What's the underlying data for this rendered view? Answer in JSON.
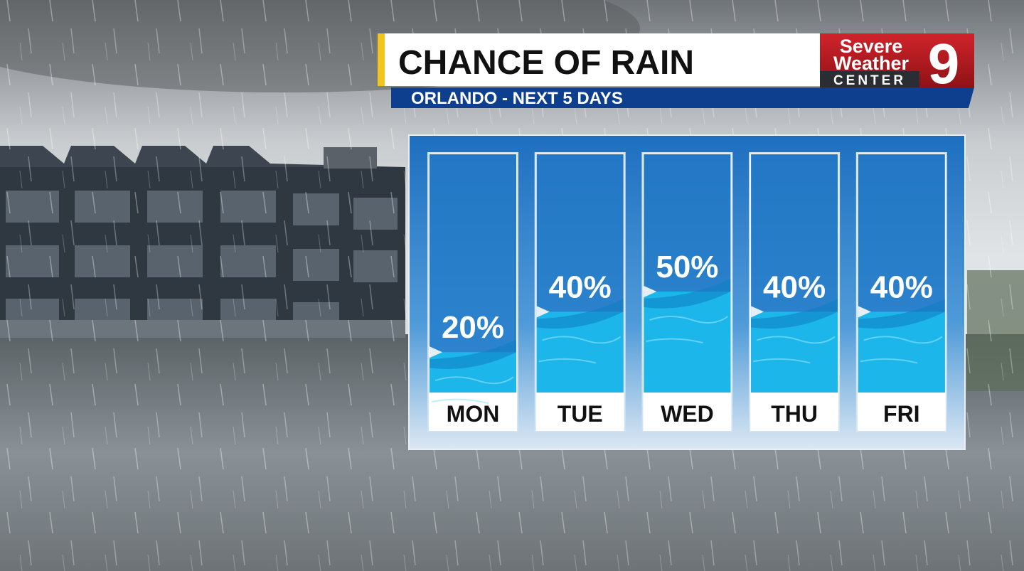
{
  "chart_data": {
    "type": "bar",
    "title": "CHANCE OF RAIN",
    "subtitle": "ORLANDO - NEXT 5 DAYS",
    "categories": [
      "MON",
      "TUE",
      "WED",
      "THU",
      "FRI"
    ],
    "values": [
      20,
      40,
      50,
      40,
      40
    ],
    "value_labels": [
      "20%",
      "40%",
      "50%",
      "40%",
      "40%"
    ],
    "color": "#1cb6ea",
    "ylim": [
      0,
      100
    ]
  },
  "logo": {
    "line1": "Severe",
    "line2": "Weather",
    "line3": "CENTER",
    "number": "9"
  }
}
